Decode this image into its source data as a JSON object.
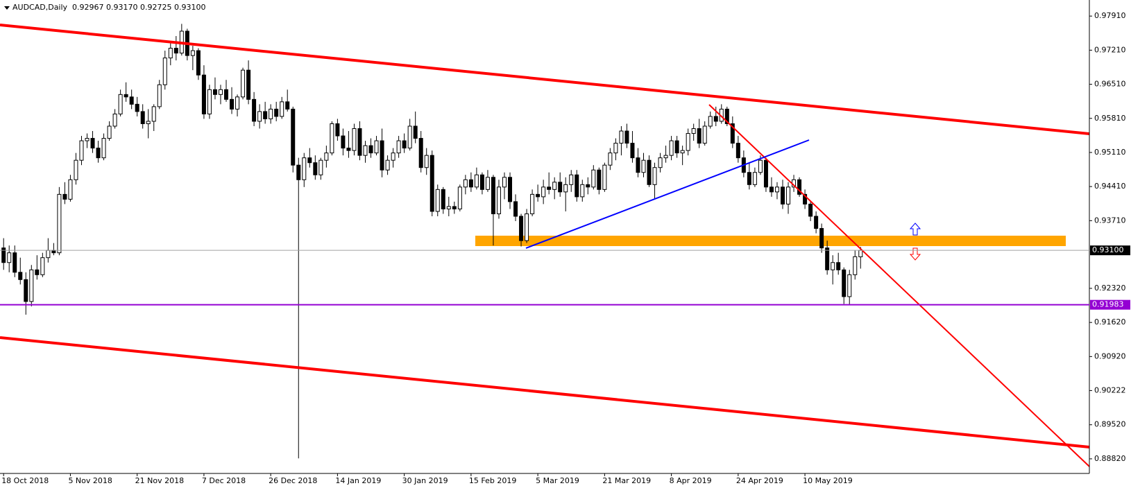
{
  "chart_data": {
    "type": "candlestick",
    "title": "AUDCAD,Daily  0.92967 0.93170 0.92725 0.93100",
    "categories": [
      "18 Oct 2018",
      null,
      null,
      null,
      null,
      null,
      null,
      null,
      null,
      null,
      null,
      null,
      "5 Nov 2018",
      null,
      null,
      null,
      null,
      null,
      null,
      null,
      null,
      null,
      null,
      null,
      "21 Nov 2018",
      null,
      null,
      null,
      null,
      null,
      null,
      null,
      null,
      null,
      null,
      null,
      "7 Dec 2018",
      null,
      null,
      null,
      null,
      null,
      null,
      null,
      null,
      null,
      null,
      null,
      "26 Dec 2018",
      null,
      null,
      null,
      null,
      null,
      null,
      null,
      null,
      null,
      null,
      null,
      "14 Jan 2019",
      null,
      null,
      null,
      null,
      null,
      null,
      null,
      null,
      null,
      null,
      null,
      "30 Jan 2019",
      null,
      null,
      null,
      null,
      null,
      null,
      null,
      null,
      null,
      null,
      null,
      "15 Feb 2019",
      null,
      null,
      null,
      null,
      null,
      null,
      null,
      null,
      null,
      null,
      null,
      "5 Mar 2019",
      null,
      null,
      null,
      null,
      null,
      null,
      null,
      null,
      null,
      null,
      null,
      "21 Mar 2019",
      null,
      null,
      null,
      null,
      null,
      null,
      null,
      null,
      null,
      null,
      null,
      "8 Apr 2019",
      null,
      null,
      null,
      null,
      null,
      null,
      null,
      null,
      null,
      null,
      null,
      "24 Apr 2019",
      null,
      null,
      null,
      null,
      null,
      null,
      null,
      null,
      null,
      null,
      null,
      "10 May 2019",
      null,
      null,
      null,
      null,
      null,
      null,
      null,
      null,
      null,
      null
    ],
    "ohlc": [
      [
        0.9315,
        0.9335,
        0.927,
        0.9285
      ],
      [
        0.9285,
        0.932,
        0.9265,
        0.9305
      ],
      [
        0.9305,
        0.932,
        0.9255,
        0.9265
      ],
      [
        0.9265,
        0.9295,
        0.924,
        0.925
      ],
      [
        0.925,
        0.9265,
        0.9178,
        0.9205
      ],
      [
        0.9205,
        0.928,
        0.9195,
        0.927
      ],
      [
        0.927,
        0.93,
        0.925,
        0.926
      ],
      [
        0.926,
        0.9305,
        0.9255,
        0.9295
      ],
      [
        0.9295,
        0.9335,
        0.9285,
        0.931
      ],
      [
        0.931,
        0.9325,
        0.93,
        0.9305
      ],
      [
        0.9305,
        0.944,
        0.93,
        0.9425
      ],
      [
        0.9425,
        0.945,
        0.9405,
        0.9415
      ],
      [
        0.9415,
        0.9465,
        0.941,
        0.9455
      ],
      [
        0.9455,
        0.951,
        0.9445,
        0.9495
      ],
      [
        0.9495,
        0.9545,
        0.9485,
        0.9535
      ],
      [
        0.9535,
        0.955,
        0.952,
        0.954
      ],
      [
        0.954,
        0.9555,
        0.951,
        0.952
      ],
      [
        0.952,
        0.9535,
        0.949,
        0.95
      ],
      [
        0.95,
        0.955,
        0.9495,
        0.954
      ],
      [
        0.954,
        0.9575,
        0.9535,
        0.9565
      ],
      [
        0.9565,
        0.96,
        0.956,
        0.959
      ],
      [
        0.959,
        0.964,
        0.9585,
        0.963
      ],
      [
        0.963,
        0.9655,
        0.9615,
        0.9625
      ],
      [
        0.9625,
        0.964,
        0.96,
        0.961
      ],
      [
        0.961,
        0.9625,
        0.9585,
        0.9595
      ],
      [
        0.9595,
        0.961,
        0.956,
        0.957
      ],
      [
        0.957,
        0.96,
        0.954,
        0.9575
      ],
      [
        0.9575,
        0.961,
        0.9555,
        0.9605
      ],
      [
        0.9605,
        0.966,
        0.96,
        0.965
      ],
      [
        0.965,
        0.972,
        0.964,
        0.9705
      ],
      [
        0.9705,
        0.9735,
        0.969,
        0.9725
      ],
      [
        0.9725,
        0.975,
        0.97,
        0.9715
      ],
      [
        0.9715,
        0.9775,
        0.971,
        0.976
      ],
      [
        0.976,
        0.9765,
        0.97,
        0.971
      ],
      [
        0.971,
        0.973,
        0.968,
        0.972
      ],
      [
        0.972,
        0.9725,
        0.966,
        0.967
      ],
      [
        0.967,
        0.969,
        0.958,
        0.959
      ],
      [
        0.959,
        0.965,
        0.958,
        0.964
      ],
      [
        0.964,
        0.9665,
        0.962,
        0.963
      ],
      [
        0.963,
        0.965,
        0.961,
        0.964
      ],
      [
        0.964,
        0.966,
        0.9615,
        0.962
      ],
      [
        0.962,
        0.9645,
        0.959,
        0.96
      ],
      [
        0.96,
        0.963,
        0.9585,
        0.9625
      ],
      [
        0.9625,
        0.9685,
        0.962,
        0.968
      ],
      [
        0.968,
        0.97,
        0.961,
        0.962
      ],
      [
        0.962,
        0.9635,
        0.9565,
        0.9575
      ],
      [
        0.9575,
        0.961,
        0.956,
        0.9595
      ],
      [
        0.9595,
        0.9615,
        0.957,
        0.958
      ],
      [
        0.958,
        0.961,
        0.957,
        0.96
      ],
      [
        0.96,
        0.9615,
        0.9575,
        0.9585
      ],
      [
        0.9585,
        0.9625,
        0.958,
        0.9615
      ],
      [
        0.9615,
        0.964,
        0.9595,
        0.96
      ],
      [
        0.96,
        0.9605,
        0.947,
        0.9485
      ],
      [
        0.9485,
        0.95,
        0.8883,
        0.9455
      ],
      [
        0.9455,
        0.951,
        0.944,
        0.95
      ],
      [
        0.95,
        0.952,
        0.948,
        0.949
      ],
      [
        0.949,
        0.9505,
        0.9455,
        0.9465
      ],
      [
        0.9465,
        0.95,
        0.9455,
        0.9495
      ],
      [
        0.9495,
        0.9525,
        0.948,
        0.951
      ],
      [
        0.951,
        0.9575,
        0.9505,
        0.957
      ],
      [
        0.957,
        0.958,
        0.9535,
        0.9545
      ],
      [
        0.9545,
        0.956,
        0.9505,
        0.952
      ],
      [
        0.952,
        0.9555,
        0.95,
        0.9515
      ],
      [
        0.9515,
        0.957,
        0.9505,
        0.956
      ],
      [
        0.956,
        0.9575,
        0.9495,
        0.9505
      ],
      [
        0.9505,
        0.9535,
        0.949,
        0.9525
      ],
      [
        0.9525,
        0.954,
        0.95,
        0.951
      ],
      [
        0.951,
        0.9545,
        0.9505,
        0.9535
      ],
      [
        0.9535,
        0.956,
        0.946,
        0.9475
      ],
      [
        0.9475,
        0.9505,
        0.9465,
        0.9495
      ],
      [
        0.9495,
        0.952,
        0.948,
        0.951
      ],
      [
        0.951,
        0.9545,
        0.95,
        0.9535
      ],
      [
        0.9535,
        0.955,
        0.951,
        0.952
      ],
      [
        0.952,
        0.958,
        0.9515,
        0.9565
      ],
      [
        0.9565,
        0.9595,
        0.953,
        0.954
      ],
      [
        0.954,
        0.9555,
        0.947,
        0.948
      ],
      [
        0.948,
        0.952,
        0.9465,
        0.9505
      ],
      [
        0.9505,
        0.9515,
        0.938,
        0.939
      ],
      [
        0.939,
        0.9445,
        0.938,
        0.9435
      ],
      [
        0.9435,
        0.944,
        0.9385,
        0.9395
      ],
      [
        0.9395,
        0.942,
        0.938,
        0.94
      ],
      [
        0.94,
        0.941,
        0.9385,
        0.9395
      ],
      [
        0.9395,
        0.9445,
        0.939,
        0.944
      ],
      [
        0.944,
        0.9465,
        0.9425,
        0.9455
      ],
      [
        0.9455,
        0.947,
        0.943,
        0.944
      ],
      [
        0.944,
        0.948,
        0.9435,
        0.9465
      ],
      [
        0.9465,
        0.947,
        0.9425,
        0.9435
      ],
      [
        0.9435,
        0.9475,
        0.943,
        0.946
      ],
      [
        0.946,
        0.9465,
        0.932,
        0.9385
      ],
      [
        0.9385,
        0.9455,
        0.9375,
        0.944
      ],
      [
        0.944,
        0.947,
        0.9415,
        0.946
      ],
      [
        0.946,
        0.947,
        0.9395,
        0.941
      ],
      [
        0.941,
        0.9425,
        0.937,
        0.938
      ],
      [
        0.938,
        0.9385,
        0.9318,
        0.933
      ],
      [
        0.933,
        0.9395,
        0.9325,
        0.9385
      ],
      [
        0.9385,
        0.9435,
        0.938,
        0.9425
      ],
      [
        0.9425,
        0.9445,
        0.941,
        0.942
      ],
      [
        0.942,
        0.9455,
        0.9405,
        0.944
      ],
      [
        0.944,
        0.947,
        0.9425,
        0.9435
      ],
      [
        0.9435,
        0.946,
        0.9415,
        0.945
      ],
      [
        0.945,
        0.947,
        0.942,
        0.943
      ],
      [
        0.943,
        0.946,
        0.939,
        0.9445
      ],
      [
        0.9445,
        0.9475,
        0.943,
        0.9465
      ],
      [
        0.9465,
        0.9475,
        0.941,
        0.942
      ],
      [
        0.942,
        0.9455,
        0.941,
        0.9445
      ],
      [
        0.9445,
        0.946,
        0.9425,
        0.944
      ],
      [
        0.944,
        0.9485,
        0.9435,
        0.9475
      ],
      [
        0.9475,
        0.948,
        0.9425,
        0.9435
      ],
      [
        0.9435,
        0.949,
        0.943,
        0.9485
      ],
      [
        0.9485,
        0.952,
        0.9475,
        0.951
      ],
      [
        0.951,
        0.954,
        0.9495,
        0.953
      ],
      [
        0.953,
        0.9565,
        0.9505,
        0.9555
      ],
      [
        0.9555,
        0.957,
        0.952,
        0.953
      ],
      [
        0.953,
        0.9555,
        0.949,
        0.95
      ],
      [
        0.95,
        0.952,
        0.946,
        0.947
      ],
      [
        0.947,
        0.951,
        0.946,
        0.9495
      ],
      [
        0.9495,
        0.9505,
        0.944,
        0.9445
      ],
      [
        0.9445,
        0.949,
        0.9415,
        0.948
      ],
      [
        0.948,
        0.951,
        0.947,
        0.95
      ],
      [
        0.95,
        0.9525,
        0.949,
        0.9505
      ],
      [
        0.9505,
        0.9545,
        0.9495,
        0.9535
      ],
      [
        0.9535,
        0.9545,
        0.95,
        0.951
      ],
      [
        0.951,
        0.9525,
        0.9485,
        0.9515
      ],
      [
        0.9515,
        0.956,
        0.9505,
        0.955
      ],
      [
        0.955,
        0.957,
        0.9535,
        0.956
      ],
      [
        0.956,
        0.958,
        0.952,
        0.953
      ],
      [
        0.953,
        0.9575,
        0.9525,
        0.9565
      ],
      [
        0.9565,
        0.9595,
        0.956,
        0.9585
      ],
      [
        0.9585,
        0.9605,
        0.9565,
        0.9575
      ],
      [
        0.9575,
        0.961,
        0.957,
        0.96
      ],
      [
        0.96,
        0.9605,
        0.9565,
        0.957
      ],
      [
        0.957,
        0.9585,
        0.952,
        0.953
      ],
      [
        0.953,
        0.9545,
        0.949,
        0.95
      ],
      [
        0.95,
        0.9515,
        0.946,
        0.947
      ],
      [
        0.947,
        0.949,
        0.9435,
        0.9445
      ],
      [
        0.9445,
        0.948,
        0.944,
        0.947
      ],
      [
        0.947,
        0.9505,
        0.9465,
        0.9495
      ],
      [
        0.9495,
        0.95,
        0.943,
        0.944
      ],
      [
        0.944,
        0.946,
        0.942,
        0.943
      ],
      [
        0.943,
        0.945,
        0.9415,
        0.944
      ],
      [
        0.944,
        0.9455,
        0.9395,
        0.9405
      ],
      [
        0.9405,
        0.945,
        0.9385,
        0.944
      ],
      [
        0.944,
        0.9465,
        0.943,
        0.9455
      ],
      [
        0.9455,
        0.946,
        0.942,
        0.9425
      ],
      [
        0.9425,
        0.9435,
        0.9395,
        0.9405
      ],
      [
        0.9405,
        0.941,
        0.937,
        0.938
      ],
      [
        0.938,
        0.939,
        0.9345,
        0.9355
      ],
      [
        0.9355,
        0.9365,
        0.9305,
        0.9315
      ],
      [
        0.9315,
        0.933,
        0.926,
        0.927
      ],
      [
        0.927,
        0.93,
        0.924,
        0.9285
      ],
      [
        0.9285,
        0.9305,
        0.926,
        0.927
      ],
      [
        0.927,
        0.9275,
        0.92,
        0.9215
      ],
      [
        0.9215,
        0.927,
        0.9198,
        0.926
      ],
      [
        0.926,
        0.931,
        0.925,
        0.9297
      ],
      [
        0.92967,
        0.9317,
        0.92725,
        0.931
      ]
    ],
    "ylim": [
      0.8852,
      0.9824
    ],
    "yticks": [
      {
        "value": 0.9791,
        "label": "0.97910"
      },
      {
        "value": 0.9721,
        "label": "0.97210"
      },
      {
        "value": 0.9651,
        "label": "0.96510"
      },
      {
        "value": 0.9581,
        "label": "0.95810"
      },
      {
        "value": 0.9511,
        "label": "0.95110"
      },
      {
        "value": 0.9441,
        "label": "0.94410"
      },
      {
        "value": 0.9371,
        "label": "0.93710"
      },
      {
        "value": 0.9232,
        "label": "0.92320"
      },
      {
        "value": 0.9162,
        "label": "0.91620"
      },
      {
        "value": 0.9092,
        "label": "0.90920"
      },
      {
        "value": 0.90222,
        "label": "0.90222"
      },
      {
        "value": 0.8952,
        "label": "0.89520"
      },
      {
        "value": 0.8882,
        "label": "0.88820"
      }
    ],
    "last_price": {
      "value": 0.931,
      "label": "0.93100"
    },
    "hlines": [
      {
        "value": 0.91983,
        "label": "0.91983",
        "color": "#9400d3"
      }
    ],
    "up_color": "#ffffff",
    "down_color": "#000000",
    "wick_color": "#000000"
  }
}
